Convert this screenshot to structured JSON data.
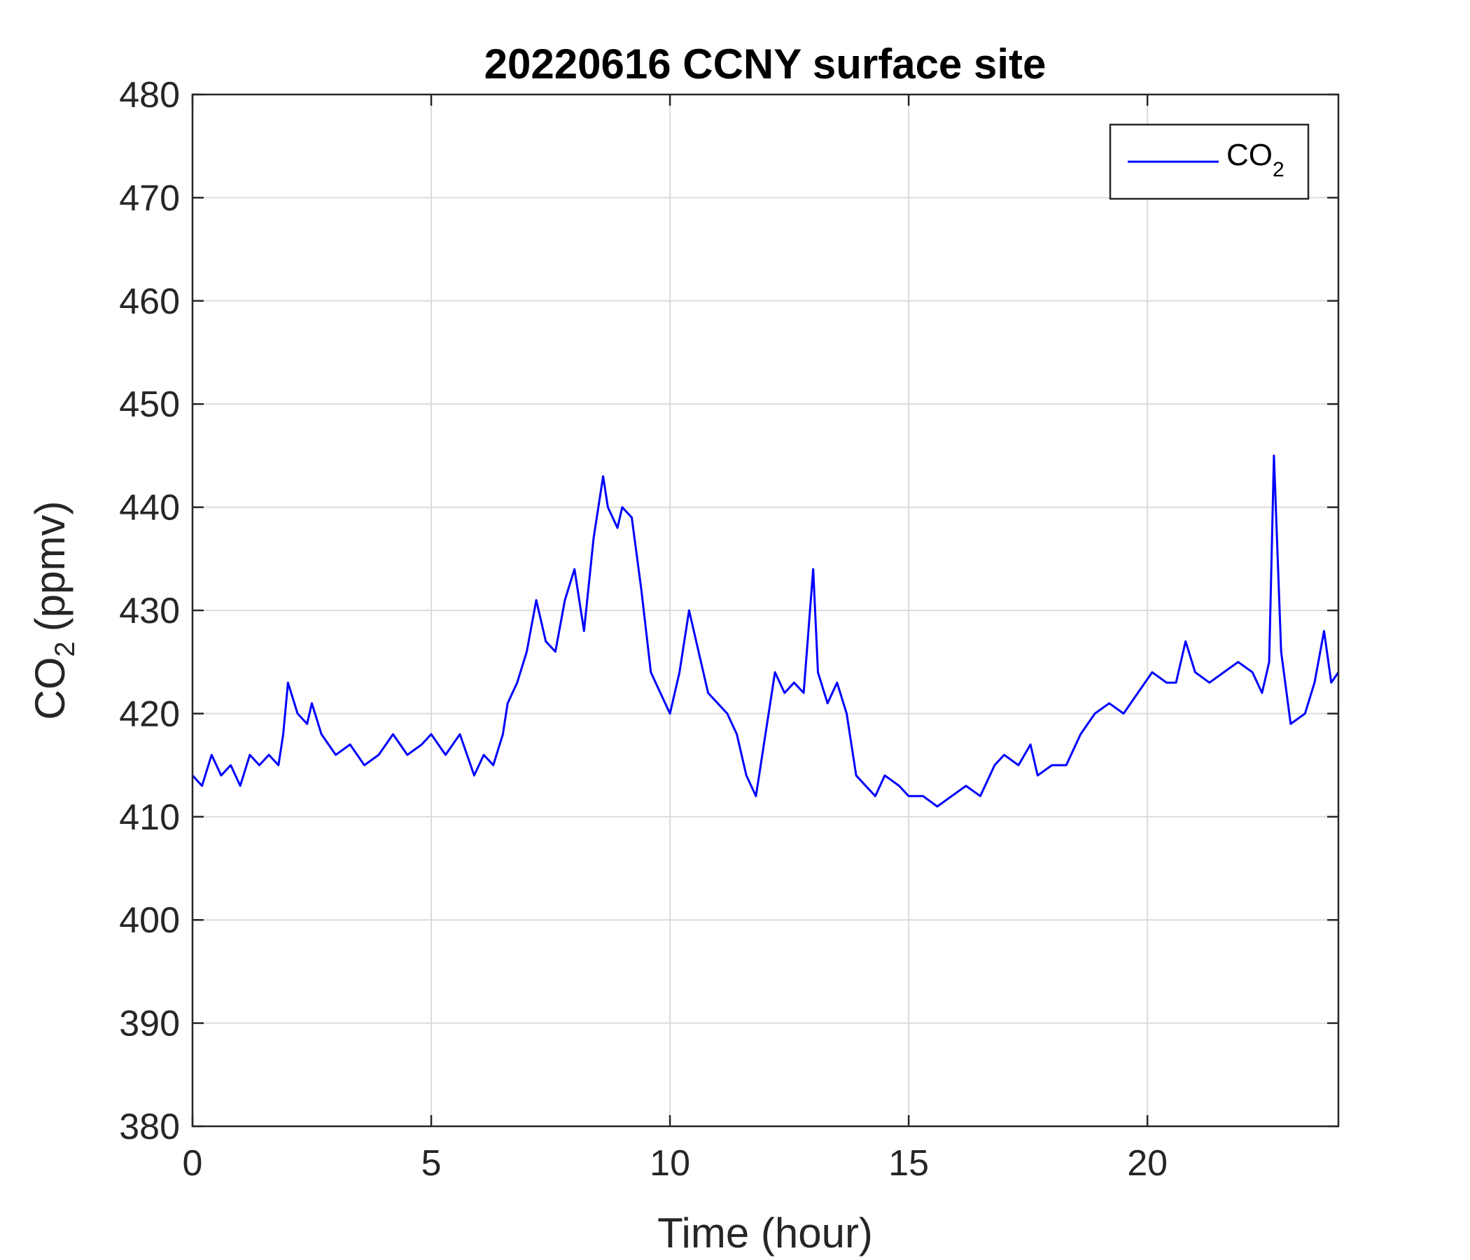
{
  "chart_data": {
    "type": "line",
    "title": "20220616 CCNY surface site",
    "xlabel": "Time (hour)",
    "ylabel_main": "CO",
    "ylabel_sub": "2",
    "ylabel_units": "(ppmv)",
    "xlim": [
      0,
      24
    ],
    "ylim": [
      380,
      480
    ],
    "xticks": [
      0,
      5,
      10,
      15,
      20
    ],
    "yticks": [
      380,
      390,
      400,
      410,
      420,
      430,
      440,
      450,
      460,
      470,
      480
    ],
    "grid": true,
    "legend_position": "top-right",
    "colors": {
      "series": "#0000ff",
      "grid": "#dcdcdc",
      "axes": "#262626"
    },
    "series": [
      {
        "name_main": "CO",
        "name_sub": "2",
        "x": [
          0,
          0.2,
          0.4,
          0.6,
          0.8,
          1.0,
          1.2,
          1.4,
          1.6,
          1.8,
          1.9,
          2.0,
          2.2,
          2.4,
          2.5,
          2.7,
          3.0,
          3.3,
          3.6,
          3.9,
          4.2,
          4.5,
          4.8,
          5.0,
          5.3,
          5.6,
          5.9,
          6.1,
          6.3,
          6.5,
          6.6,
          6.8,
          7.0,
          7.2,
          7.4,
          7.6,
          7.8,
          8.0,
          8.2,
          8.4,
          8.6,
          8.7,
          8.9,
          9.0,
          9.2,
          9.4,
          9.6,
          9.8,
          10.0,
          10.2,
          10.4,
          10.6,
          10.8,
          11.0,
          11.2,
          11.4,
          11.6,
          11.8,
          12.0,
          12.2,
          12.4,
          12.6,
          12.8,
          13.0,
          13.1,
          13.3,
          13.5,
          13.7,
          13.9,
          14.1,
          14.3,
          14.5,
          14.8,
          15.0,
          15.3,
          15.6,
          15.9,
          16.2,
          16.5,
          16.8,
          17.0,
          17.3,
          17.55,
          17.7,
          18.0,
          18.3,
          18.6,
          18.9,
          19.2,
          19.5,
          19.8,
          20.1,
          20.4,
          20.6,
          20.8,
          21.0,
          21.3,
          21.6,
          21.9,
          22.2,
          22.4,
          22.55,
          22.65,
          22.8,
          23.0,
          23.3,
          23.5,
          23.7,
          23.85,
          24.0
        ],
        "values": [
          414,
          413,
          416,
          414,
          415,
          413,
          416,
          415,
          416,
          415,
          418,
          423,
          420,
          419,
          421,
          418,
          416,
          417,
          415,
          416,
          418,
          416,
          417,
          418,
          416,
          418,
          414,
          416,
          415,
          418,
          421,
          423,
          426,
          431,
          427,
          426,
          431,
          434,
          428,
          437,
          443,
          440,
          438,
          440,
          439,
          432,
          424,
          422,
          420,
          424,
          430,
          426,
          422,
          421,
          420,
          418,
          414,
          412,
          418,
          424,
          422,
          423,
          422,
          434,
          424,
          421,
          423,
          420,
          414,
          413,
          412,
          414,
          413,
          412,
          412,
          411,
          412,
          413,
          412,
          415,
          416,
          415,
          417,
          414,
          415,
          415,
          418,
          420,
          421,
          420,
          422,
          424,
          423,
          423,
          427,
          424,
          423,
          424,
          425,
          424,
          422,
          425,
          445,
          426,
          419,
          420,
          423,
          428,
          423,
          424
        ]
      }
    ]
  }
}
